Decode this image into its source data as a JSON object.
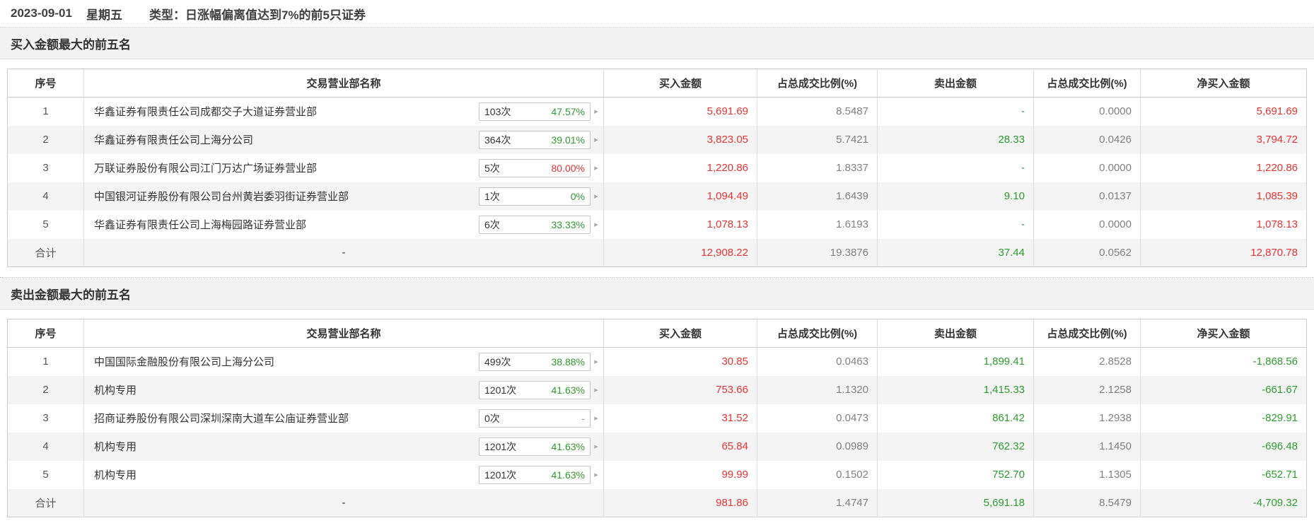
{
  "info": {
    "date": "2023-09-01",
    "weekday": "星期五",
    "type_label": "类型：",
    "type_value": "日涨幅偏离值达到7%的前5只证券"
  },
  "icons": {
    "chevron_right": "▸"
  },
  "colors": {
    "buy_red": "#e63333",
    "sell_green": "#2e9b2e",
    "ratio_gray": "#808080"
  },
  "columns": [
    "序号",
    "交易营业部名称",
    "买入金额",
    "占总成交比例(%)",
    "卖出金额",
    "占总成交比例(%)",
    "净买入金额"
  ],
  "sections": [
    {
      "title": "买入金额最大的前五名",
      "rows": [
        {
          "no": "1",
          "name": "华鑫证券有限责任公司成都交子大道证券营业部",
          "badge_count": "103次",
          "badge_pct": "47.57%",
          "badge_pct_color": "green",
          "buy": "5,691.69",
          "buy_ratio": "8.5487",
          "sell": "-",
          "sell_ratio": "0.0000",
          "net": "5,691.69",
          "net_color": "red"
        },
        {
          "no": "2",
          "name": "华鑫证券有限责任公司上海分公司",
          "badge_count": "364次",
          "badge_pct": "39.01%",
          "badge_pct_color": "green",
          "buy": "3,823.05",
          "buy_ratio": "5.7421",
          "sell": "28.33",
          "sell_ratio": "0.0426",
          "net": "3,794.72",
          "net_color": "red"
        },
        {
          "no": "3",
          "name": "万联证券股份有限公司江门万达广场证券营业部",
          "badge_count": "5次",
          "badge_pct": "80.00%",
          "badge_pct_color": "red",
          "buy": "1,220.86",
          "buy_ratio": "1.8337",
          "sell": "-",
          "sell_ratio": "0.0000",
          "net": "1,220.86",
          "net_color": "red"
        },
        {
          "no": "4",
          "name": "中国银河证券股份有限公司台州黄岩委羽街证券营业部",
          "badge_count": "1次",
          "badge_pct": "0%",
          "badge_pct_color": "green",
          "buy": "1,094.49",
          "buy_ratio": "1.6439",
          "sell": "9.10",
          "sell_ratio": "0.0137",
          "net": "1,085.39",
          "net_color": "red"
        },
        {
          "no": "5",
          "name": "华鑫证券有限责任公司上海梅园路证券营业部",
          "badge_count": "6次",
          "badge_pct": "33.33%",
          "badge_pct_color": "green",
          "buy": "1,078.13",
          "buy_ratio": "1.6193",
          "sell": "-",
          "sell_ratio": "0.0000",
          "net": "1,078.13",
          "net_color": "red"
        }
      ],
      "total": {
        "label": "合计",
        "name": "-",
        "buy": "12,908.22",
        "buy_ratio": "19.3876",
        "sell": "37.44",
        "sell_ratio": "0.0562",
        "net": "12,870.78",
        "net_color": "red"
      }
    },
    {
      "title": "卖出金额最大的前五名",
      "rows": [
        {
          "no": "1",
          "name": "中国国际金融股份有限公司上海分公司",
          "badge_count": "499次",
          "badge_pct": "38.88%",
          "badge_pct_color": "green",
          "buy": "30.85",
          "buy_ratio": "0.0463",
          "sell": "1,899.41",
          "sell_ratio": "2.8528",
          "net": "-1,868.56",
          "net_color": "green"
        },
        {
          "no": "2",
          "name": "机构专用",
          "badge_count": "1201次",
          "badge_pct": "41.63%",
          "badge_pct_color": "green",
          "buy": "753.66",
          "buy_ratio": "1.1320",
          "sell": "1,415.33",
          "sell_ratio": "2.1258",
          "net": "-661.67",
          "net_color": "green"
        },
        {
          "no": "3",
          "name": "招商证券股份有限公司深圳深南大道车公庙证券营业部",
          "badge_count": "0次",
          "badge_pct": "-",
          "badge_pct_color": "dim",
          "buy": "31.52",
          "buy_ratio": "0.0473",
          "sell": "861.42",
          "sell_ratio": "1.2938",
          "net": "-829.91",
          "net_color": "green"
        },
        {
          "no": "4",
          "name": "机构专用",
          "badge_count": "1201次",
          "badge_pct": "41.63%",
          "badge_pct_color": "green",
          "buy": "65.84",
          "buy_ratio": "0.0989",
          "sell": "762.32",
          "sell_ratio": "1.1450",
          "net": "-696.48",
          "net_color": "green"
        },
        {
          "no": "5",
          "name": "机构专用",
          "badge_count": "1201次",
          "badge_pct": "41.63%",
          "badge_pct_color": "green",
          "buy": "99.99",
          "buy_ratio": "0.1502",
          "sell": "752.70",
          "sell_ratio": "1.1305",
          "net": "-652.71",
          "net_color": "green"
        }
      ],
      "total": {
        "label": "合计",
        "name": "-",
        "buy": "981.86",
        "buy_ratio": "1.4747",
        "sell": "5,691.18",
        "sell_ratio": "8.5479",
        "net": "-4,709.32",
        "net_color": "green"
      }
    }
  ]
}
